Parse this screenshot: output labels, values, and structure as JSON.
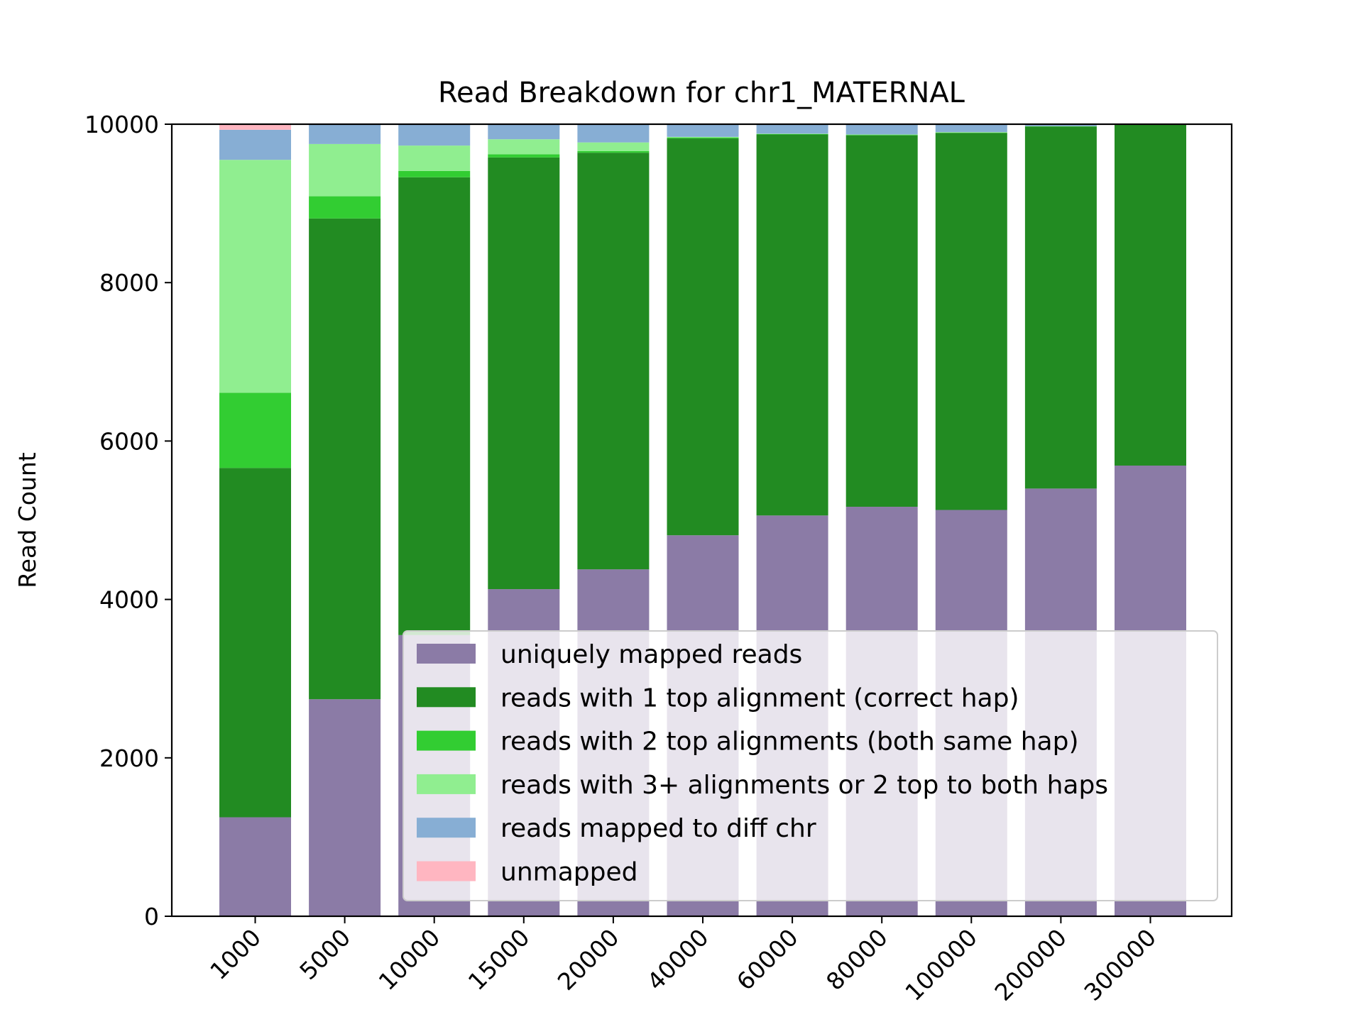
{
  "chart_data": {
    "type": "bar",
    "stacked": true,
    "title": "Read Breakdown for chr1_MATERNAL",
    "xlabel": "",
    "ylabel": "Read Count",
    "ylim": [
      0,
      10000
    ],
    "yticks": [
      "0",
      "2000",
      "4000",
      "6000",
      "8000",
      "10000"
    ],
    "categories": [
      "1000",
      "5000",
      "10000",
      "15000",
      "20000",
      "40000",
      "60000",
      "80000",
      "100000",
      "200000",
      "300000"
    ],
    "legend_position": "lower-right",
    "series": [
      {
        "name": "uniquely mapped reads",
        "color": "#8b7ba6",
        "values": [
          1250,
          2740,
          3550,
          4130,
          4380,
          4810,
          5060,
          5170,
          5130,
          5400,
          5690
        ]
      },
      {
        "name": "reads with 1 top alignment (correct hap)",
        "color": "#228b22",
        "values": [
          4410,
          6070,
          5780,
          5450,
          5260,
          5010,
          4810,
          4690,
          4760,
          4570,
          4310
        ]
      },
      {
        "name": "reads with 2 top alignments (both same hap)",
        "color": "#32cd32",
        "values": [
          950,
          280,
          80,
          40,
          20,
          10,
          5,
          5,
          5,
          5,
          0
        ]
      },
      {
        "name": "reads with 3+ alignments or 2 top to both haps",
        "color": "#90ee90",
        "values": [
          2940,
          660,
          320,
          190,
          110,
          10,
          5,
          5,
          5,
          0,
          0
        ]
      },
      {
        "name": "reads mapped to diff chr",
        "color": "#87aed4",
        "values": [
          380,
          250,
          270,
          190,
          230,
          160,
          120,
          130,
          100,
          25,
          0
        ]
      },
      {
        "name": "unmapped",
        "color": "#ffb6c1",
        "values": [
          70,
          0,
          0,
          0,
          0,
          0,
          0,
          0,
          0,
          0,
          0
        ]
      }
    ]
  }
}
